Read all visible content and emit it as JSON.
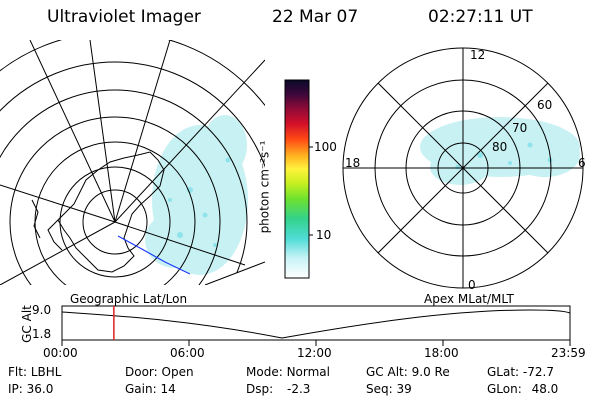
{
  "header": {
    "title": "Ultraviolet Imager",
    "date": "22 Mar 07",
    "time": "02:27:11 UT"
  },
  "colorbar": {
    "unit": "photon cm⁻²s⁻¹",
    "tick_100": "100",
    "tick_10": "10"
  },
  "geo_panel": {
    "label": "Geographic Lat/Lon"
  },
  "polar_panel": {
    "label": "Apex MLat/MLT",
    "mlt_12": "12",
    "mlt_18": "18",
    "mlt_6": "6",
    "mlt_0": "0",
    "lat_60": "60",
    "lat_70": "70",
    "lat_80": "80"
  },
  "timeline": {
    "ylabel": "GC Alt",
    "y_top": "9.0",
    "y_bottom": "1.8",
    "ticks": [
      "00:00",
      "06:00",
      "12:00",
      "18:00",
      "23:59"
    ],
    "current_time_hours": 2.45
  },
  "info": {
    "filter_label": "Flt:",
    "filter_value": "LBHL",
    "ip_label": "IP:",
    "ip_value": "36.0",
    "door_label": "Door:",
    "door_value": "Open",
    "gain_label": "Gain:",
    "gain_value": "14",
    "mode_label": "Mode:",
    "mode_value": "Normal",
    "dsp_label": "Dsp:",
    "dsp_value": "-2.3",
    "gcalt_label": "GC Alt:",
    "gcalt_value": "9.0 Re",
    "seq_label": "Seq:",
    "seq_value": "39",
    "glat_label": "GLat:",
    "glat_value": "-72.7",
    "glon_label": "GLon:",
    "glon_value": "48.0"
  }
}
